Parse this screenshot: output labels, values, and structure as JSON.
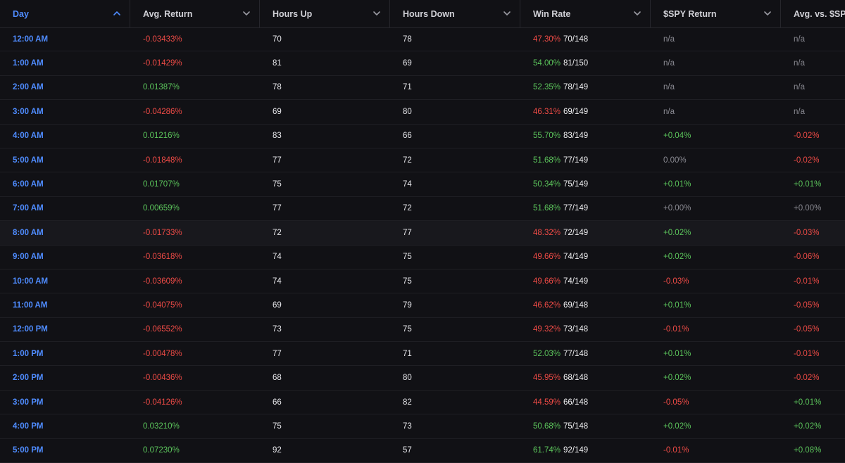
{
  "colors": {
    "positive": "#5bc45b",
    "negative": "#ef4b46",
    "neutral": "#8a8a92",
    "accent": "#4f8cff"
  },
  "headers": [
    {
      "label": "Day",
      "sort_icon": "chevron-up-icon",
      "sorted": "asc"
    },
    {
      "label": "Avg. Return",
      "sort_icon": "chevron-down-icon"
    },
    {
      "label": "Hours Up",
      "sort_icon": "chevron-down-icon"
    },
    {
      "label": "Hours Down",
      "sort_icon": "chevron-down-icon"
    },
    {
      "label": "Win Rate",
      "sort_icon": "chevron-down-icon"
    },
    {
      "label": "$SPY Return",
      "sort_icon": "chevron-down-icon"
    },
    {
      "label": "Avg. vs. $SPY",
      "sort_icon": "chevron-down-icon"
    }
  ],
  "rows": [
    {
      "day": "12:00 AM",
      "avg_return": "-0.03433%",
      "avg_return_sign": "neg",
      "hours_up": "70",
      "hours_down": "78",
      "win_rate_pct": "47.30%",
      "win_rate_sign": "neg",
      "win_rate_frac": "70/148",
      "spy_return": "n/a",
      "spy_sign": "neu",
      "avg_vs_spy": "n/a",
      "avs_sign": "neu"
    },
    {
      "day": "1:00 AM",
      "avg_return": "-0.01429%",
      "avg_return_sign": "neg",
      "hours_up": "81",
      "hours_down": "69",
      "win_rate_pct": "54.00%",
      "win_rate_sign": "pos",
      "win_rate_frac": "81/150",
      "spy_return": "n/a",
      "spy_sign": "neu",
      "avg_vs_spy": "n/a",
      "avs_sign": "neu"
    },
    {
      "day": "2:00 AM",
      "avg_return": "0.01387%",
      "avg_return_sign": "pos",
      "hours_up": "78",
      "hours_down": "71",
      "win_rate_pct": "52.35%",
      "win_rate_sign": "pos",
      "win_rate_frac": "78/149",
      "spy_return": "n/a",
      "spy_sign": "neu",
      "avg_vs_spy": "n/a",
      "avs_sign": "neu"
    },
    {
      "day": "3:00 AM",
      "avg_return": "-0.04286%",
      "avg_return_sign": "neg",
      "hours_up": "69",
      "hours_down": "80",
      "win_rate_pct": "46.31%",
      "win_rate_sign": "neg",
      "win_rate_frac": "69/149",
      "spy_return": "n/a",
      "spy_sign": "neu",
      "avg_vs_spy": "n/a",
      "avs_sign": "neu"
    },
    {
      "day": "4:00 AM",
      "avg_return": "0.01216%",
      "avg_return_sign": "pos",
      "hours_up": "83",
      "hours_down": "66",
      "win_rate_pct": "55.70%",
      "win_rate_sign": "pos",
      "win_rate_frac": "83/149",
      "spy_return": "+0.04%",
      "spy_sign": "pos",
      "avg_vs_spy": "-0.02%",
      "avs_sign": "neg"
    },
    {
      "day": "5:00 AM",
      "avg_return": "-0.01848%",
      "avg_return_sign": "neg",
      "hours_up": "77",
      "hours_down": "72",
      "win_rate_pct": "51.68%",
      "win_rate_sign": "pos",
      "win_rate_frac": "77/149",
      "spy_return": "0.00%",
      "spy_sign": "neu",
      "avg_vs_spy": "-0.02%",
      "avs_sign": "neg"
    },
    {
      "day": "6:00 AM",
      "avg_return": "0.01707%",
      "avg_return_sign": "pos",
      "hours_up": "75",
      "hours_down": "74",
      "win_rate_pct": "50.34%",
      "win_rate_sign": "pos",
      "win_rate_frac": "75/149",
      "spy_return": "+0.01%",
      "spy_sign": "pos",
      "avg_vs_spy": "+0.01%",
      "avs_sign": "pos"
    },
    {
      "day": "7:00 AM",
      "avg_return": "0.00659%",
      "avg_return_sign": "pos",
      "hours_up": "77",
      "hours_down": "72",
      "win_rate_pct": "51.68%",
      "win_rate_sign": "pos",
      "win_rate_frac": "77/149",
      "spy_return": "+0.00%",
      "spy_sign": "neu",
      "avg_vs_spy": "+0.00%",
      "avs_sign": "neu"
    },
    {
      "day": "8:00 AM",
      "avg_return": "-0.01733%",
      "avg_return_sign": "neg",
      "hours_up": "72",
      "hours_down": "77",
      "win_rate_pct": "48.32%",
      "win_rate_sign": "neg",
      "win_rate_frac": "72/149",
      "spy_return": "+0.02%",
      "spy_sign": "pos",
      "avg_vs_spy": "-0.03%",
      "avs_sign": "neg",
      "highlight": true
    },
    {
      "day": "9:00 AM",
      "avg_return": "-0.03618%",
      "avg_return_sign": "neg",
      "hours_up": "74",
      "hours_down": "75",
      "win_rate_pct": "49.66%",
      "win_rate_sign": "neg",
      "win_rate_frac": "74/149",
      "spy_return": "+0.02%",
      "spy_sign": "pos",
      "avg_vs_spy": "-0.06%",
      "avs_sign": "neg"
    },
    {
      "day": "10:00 AM",
      "avg_return": "-0.03609%",
      "avg_return_sign": "neg",
      "hours_up": "74",
      "hours_down": "75",
      "win_rate_pct": "49.66%",
      "win_rate_sign": "neg",
      "win_rate_frac": "74/149",
      "spy_return": "-0.03%",
      "spy_sign": "neg",
      "avg_vs_spy": "-0.01%",
      "avs_sign": "neg"
    },
    {
      "day": "11:00 AM",
      "avg_return": "-0.04075%",
      "avg_return_sign": "neg",
      "hours_up": "69",
      "hours_down": "79",
      "win_rate_pct": "46.62%",
      "win_rate_sign": "neg",
      "win_rate_frac": "69/148",
      "spy_return": "+0.01%",
      "spy_sign": "pos",
      "avg_vs_spy": "-0.05%",
      "avs_sign": "neg"
    },
    {
      "day": "12:00 PM",
      "avg_return": "-0.06552%",
      "avg_return_sign": "neg",
      "hours_up": "73",
      "hours_down": "75",
      "win_rate_pct": "49.32%",
      "win_rate_sign": "neg",
      "win_rate_frac": "73/148",
      "spy_return": "-0.01%",
      "spy_sign": "neg",
      "avg_vs_spy": "-0.05%",
      "avs_sign": "neg"
    },
    {
      "day": "1:00 PM",
      "avg_return": "-0.00478%",
      "avg_return_sign": "neg",
      "hours_up": "77",
      "hours_down": "71",
      "win_rate_pct": "52.03%",
      "win_rate_sign": "pos",
      "win_rate_frac": "77/148",
      "spy_return": "+0.01%",
      "spy_sign": "pos",
      "avg_vs_spy": "-0.01%",
      "avs_sign": "neg"
    },
    {
      "day": "2:00 PM",
      "avg_return": "-0.00436%",
      "avg_return_sign": "neg",
      "hours_up": "68",
      "hours_down": "80",
      "win_rate_pct": "45.95%",
      "win_rate_sign": "neg",
      "win_rate_frac": "68/148",
      "spy_return": "+0.02%",
      "spy_sign": "pos",
      "avg_vs_spy": "-0.02%",
      "avs_sign": "neg"
    },
    {
      "day": "3:00 PM",
      "avg_return": "-0.04126%",
      "avg_return_sign": "neg",
      "hours_up": "66",
      "hours_down": "82",
      "win_rate_pct": "44.59%",
      "win_rate_sign": "neg",
      "win_rate_frac": "66/148",
      "spy_return": "-0.05%",
      "spy_sign": "neg",
      "avg_vs_spy": "+0.01%",
      "avs_sign": "pos"
    },
    {
      "day": "4:00 PM",
      "avg_return": "0.03210%",
      "avg_return_sign": "pos",
      "hours_up": "75",
      "hours_down": "73",
      "win_rate_pct": "50.68%",
      "win_rate_sign": "pos",
      "win_rate_frac": "75/148",
      "spy_return": "+0.02%",
      "spy_sign": "pos",
      "avg_vs_spy": "+0.02%",
      "avs_sign": "pos"
    },
    {
      "day": "5:00 PM",
      "avg_return": "0.07230%",
      "avg_return_sign": "pos",
      "hours_up": "92",
      "hours_down": "57",
      "win_rate_pct": "61.74%",
      "win_rate_sign": "pos",
      "win_rate_frac": "92/149",
      "spy_return": "-0.01%",
      "spy_sign": "neg",
      "avg_vs_spy": "+0.08%",
      "avs_sign": "pos"
    }
  ]
}
